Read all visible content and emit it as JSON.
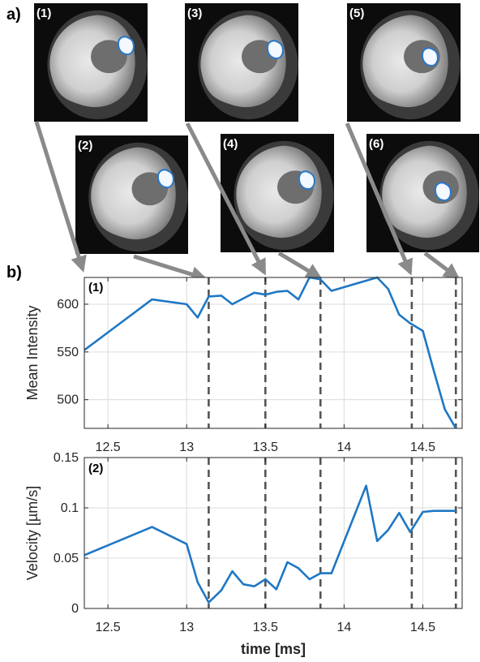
{
  "figure": {
    "panel_a": "a)",
    "panel_b": "b)"
  },
  "thumbnails": [
    {
      "label": "(1)"
    },
    {
      "label": "(2)"
    },
    {
      "label": "(3)"
    },
    {
      "label": "(4)"
    },
    {
      "label": "(5)"
    },
    {
      "label": "(6)"
    }
  ],
  "colors": {
    "line": "#1f77c4",
    "marker": "#555555",
    "arrow": "#8a8a8a",
    "outline": "#2a78c8"
  },
  "chart_data": [
    {
      "type": "line",
      "label": "(1)",
      "xlabel": "",
      "ylabel": "Mean Intensity",
      "xlim": [
        12.35,
        14.75
      ],
      "ylim": [
        470,
        628
      ],
      "xticks": [
        12.5,
        13,
        13.5,
        14,
        14.5
      ],
      "xtick_labels": [
        "12.5",
        "13",
        "13.5",
        "14",
        "14.5"
      ],
      "yticks": [
        500,
        550,
        600
      ],
      "ytick_labels": [
        "500",
        "550",
        "600"
      ],
      "grid": true,
      "x": [
        12.35,
        12.78,
        13.0,
        13.07,
        13.14,
        13.22,
        13.29,
        13.36,
        13.43,
        13.5,
        13.57,
        13.64,
        13.71,
        13.78,
        13.85,
        13.92,
        14.21,
        14.28,
        14.35,
        14.42,
        14.5,
        14.57,
        14.64,
        14.71
      ],
      "y": [
        552,
        605,
        600,
        586,
        608,
        609,
        600,
        606,
        612,
        610,
        613,
        614,
        605,
        628,
        626,
        614,
        628,
        616,
        589,
        580,
        572,
        530,
        490,
        470
      ],
      "markers_x": [
        13.14,
        13.5,
        13.85,
        14.43,
        14.71
      ]
    },
    {
      "type": "line",
      "label": "(2)",
      "xlabel": "time [ms]",
      "ylabel": "Velocity [µm/s]",
      "xlim": [
        12.35,
        14.75
      ],
      "ylim": [
        0,
        0.15
      ],
      "xticks": [
        12.5,
        13,
        13.5,
        14,
        14.5
      ],
      "xtick_labels": [
        "12.5",
        "13",
        "13.5",
        "14",
        "14.5"
      ],
      "yticks": [
        0,
        0.05,
        0.1,
        0.15
      ],
      "ytick_labels": [
        "0",
        "0.05",
        "0.1",
        "0.15"
      ],
      "grid": true,
      "x": [
        12.35,
        12.78,
        13.0,
        13.07,
        13.14,
        13.22,
        13.29,
        13.36,
        13.43,
        13.5,
        13.57,
        13.64,
        13.71,
        13.78,
        13.85,
        13.92,
        14.14,
        14.21,
        14.28,
        14.35,
        14.42,
        14.5,
        14.57,
        14.64,
        14.71
      ],
      "y": [
        0.053,
        0.081,
        0.064,
        0.026,
        0.006,
        0.018,
        0.037,
        0.024,
        0.022,
        0.029,
        0.019,
        0.046,
        0.04,
        0.029,
        0.035,
        0.035,
        0.122,
        0.067,
        0.078,
        0.095,
        0.076,
        0.096,
        0.097,
        0.097,
        0.097
      ],
      "markers_x": [
        13.14,
        13.5,
        13.85,
        14.43,
        14.71
      ]
    }
  ]
}
